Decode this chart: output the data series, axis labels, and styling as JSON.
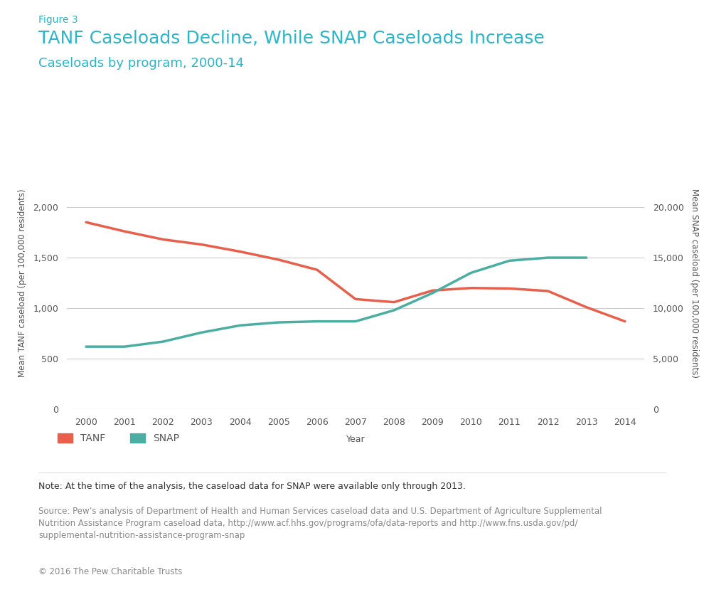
{
  "figure_label": "Figure 3",
  "title": "TANF Caseloads Decline, While SNAP Caseloads Increase",
  "subtitle": "Caseloads by program, 2000-14",
  "xlabel": "Year",
  "ylabel_left": "Mean TANF caseload (per 100,000 residents)",
  "ylabel_right": "Mean SNAP caseload (per 100,000 residents)",
  "years": [
    2000,
    2001,
    2002,
    2003,
    2004,
    2005,
    2006,
    2007,
    2008,
    2009,
    2010,
    2011,
    2012,
    2013,
    2014
  ],
  "tanf": [
    1850,
    1760,
    1680,
    1630,
    1560,
    1480,
    1380,
    1090,
    1060,
    1175,
    1200,
    1195,
    1170,
    1010,
    870
  ],
  "snap": [
    6200,
    6200,
    6700,
    7600,
    8300,
    8600,
    8700,
    8700,
    9800,
    11500,
    13500,
    14700,
    15000,
    15000,
    null
  ],
  "tanf_color": "#E8604C",
  "snap_color": "#4AAEA3",
  "title_color": "#2BB5C8",
  "figure_label_color": "#2BB5C8",
  "subtitle_color": "#2BB5C8",
  "text_color": "#555555",
  "left_ylim": [
    0,
    2500
  ],
  "right_ylim": [
    0,
    25000
  ],
  "left_yticks": [
    0,
    500,
    1000,
    1500,
    2000
  ],
  "right_yticks": [
    0,
    5000,
    10000,
    15000,
    20000
  ],
  "note_text": "Note: At the time of the analysis, the caseload data for SNAP were available only through 2013.",
  "source_line1": "Source: Pew’s analysis of Department of Health and Human Services caseload data and U.S. Department of Agriculture Supplemental",
  "source_line2": "Nutrition Assistance Program caseload data, http://www.acf.hhs.gov/programs/ofa/data-reports and http://www.fns.usda.gov/pd/",
  "source_line3": "supplemental-nutrition-assistance-program-snap",
  "copyright": "© 2016 The Pew Charitable Trusts",
  "background_color": "#FFFFFF",
  "grid_color": "#CCCCCC",
  "line_width": 2.5
}
